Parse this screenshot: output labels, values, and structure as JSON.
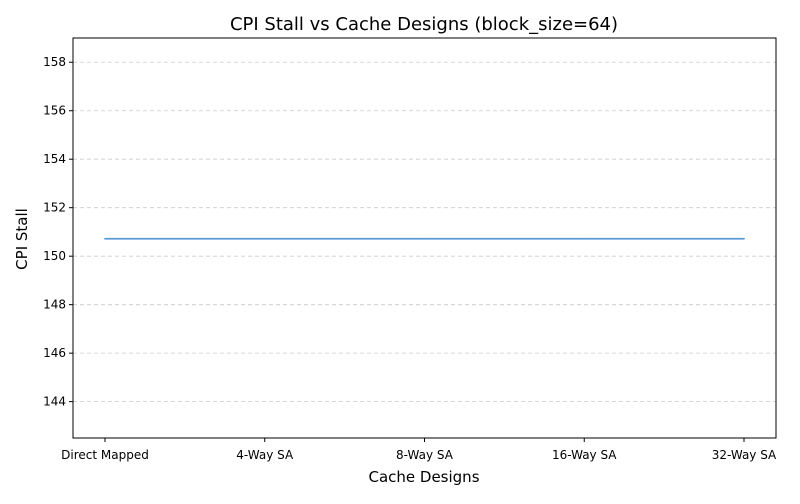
{
  "chart_data": {
    "type": "line",
    "title": "CPI Stall vs Cache Designs (block_size=64)",
    "xlabel": "Cache Designs",
    "ylabel": "CPI Stall",
    "categories": [
      "Direct Mapped",
      "4-Way SA",
      "8-Way SA",
      "16-Way SA",
      "32-Way SA"
    ],
    "series": [
      {
        "values": [
          150.72,
          150.72,
          150.72,
          150.72,
          150.72
        ],
        "color": "#5b9bd5"
      }
    ],
    "ylim": [
      142.5,
      159.0
    ],
    "yticks": [
      144,
      146,
      148,
      150,
      152,
      154,
      156,
      158
    ],
    "grid": {
      "y": true,
      "x": false,
      "style": "dashed",
      "color": "#cccccc"
    }
  }
}
